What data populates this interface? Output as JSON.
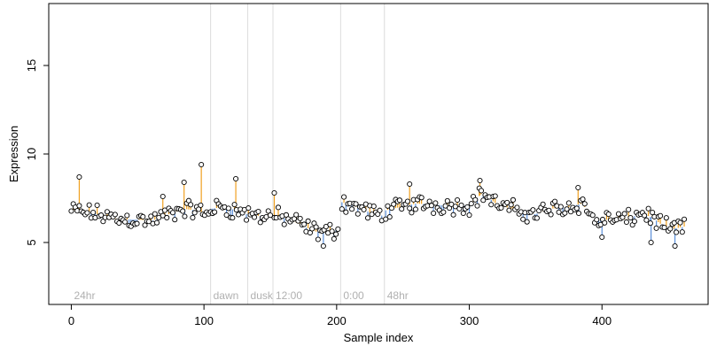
{
  "chart_data": {
    "type": "scatter",
    "title": "",
    "xlabel": "Sample index",
    "ylabel": "Expression",
    "xlim": [
      -17,
      480
    ],
    "ylim": [
      1.5,
      18.5
    ],
    "xticks": [
      0,
      100,
      200,
      300,
      400
    ],
    "yticks": [
      5,
      10,
      15
    ],
    "grid": false,
    "colors": {
      "above_trend": "#f0a020",
      "below_trend": "#5b8fd9",
      "marker_line": "#dcdcdc"
    },
    "markers": [
      {
        "x": 0,
        "label": "24hr"
      },
      {
        "x": 105,
        "label": "dawn"
      },
      {
        "x": 133,
        "label": "dusk"
      },
      {
        "x": 152,
        "label": "12:00"
      },
      {
        "x": 203,
        "label": "0:00"
      },
      {
        "x": 236,
        "label": "48hr"
      }
    ],
    "segments": [
      {
        "x": [
          0,
          20,
          35,
          50,
          60,
          70,
          85,
          95,
          104
        ],
        "y": [
          6.8,
          6.6,
          6.3,
          6.3,
          6.2,
          6.5,
          6.9,
          6.8,
          6.6
        ]
      },
      {
        "x": [
          105,
          115,
          125,
          132
        ],
        "y": [
          6.9,
          7.0,
          6.8,
          6.6
        ]
      },
      {
        "x": [
          133,
          142,
          151
        ],
        "y": [
          6.6,
          6.5,
          6.6
        ]
      },
      {
        "x": [
          152,
          165,
          175,
          185,
          195,
          202
        ],
        "y": [
          6.5,
          6.3,
          5.9,
          5.6,
          5.6,
          5.8
        ]
      },
      {
        "x": [
          203,
          215,
          225,
          235
        ],
        "y": [
          7.3,
          7.0,
          6.7,
          6.5
        ]
      },
      {
        "x": [
          236,
          260,
          280,
          300,
          310,
          320,
          335,
          350,
          360,
          375,
          385,
          395,
          405,
          420,
          430,
          440,
          450,
          462
        ],
        "y": [
          6.8,
          7.2,
          7.1,
          7.1,
          7.8,
          7.2,
          6.8,
          6.6,
          6.9,
          7.0,
          7.2,
          6.2,
          6.3,
          6.3,
          6.7,
          6.3,
          5.7,
          5.9
        ]
      }
    ],
    "outliers": [
      {
        "x": 6,
        "y": 8.7
      },
      {
        "x": 69,
        "y": 7.6
      },
      {
        "x": 98,
        "y": 9.4
      },
      {
        "x": 124,
        "y": 8.6
      },
      {
        "x": 85,
        "y": 8.4
      },
      {
        "x": 153,
        "y": 7.8
      },
      {
        "x": 190,
        "y": 4.8
      },
      {
        "x": 308,
        "y": 8.5
      },
      {
        "x": 255,
        "y": 8.3
      },
      {
        "x": 382,
        "y": 8.1
      },
      {
        "x": 400,
        "y": 5.3
      },
      {
        "x": 437,
        "y": 5.0
      },
      {
        "x": 455,
        "y": 4.8
      }
    ],
    "noise_amplitude": 0.45,
    "point_spacing": 1.5,
    "x_end": 462
  }
}
